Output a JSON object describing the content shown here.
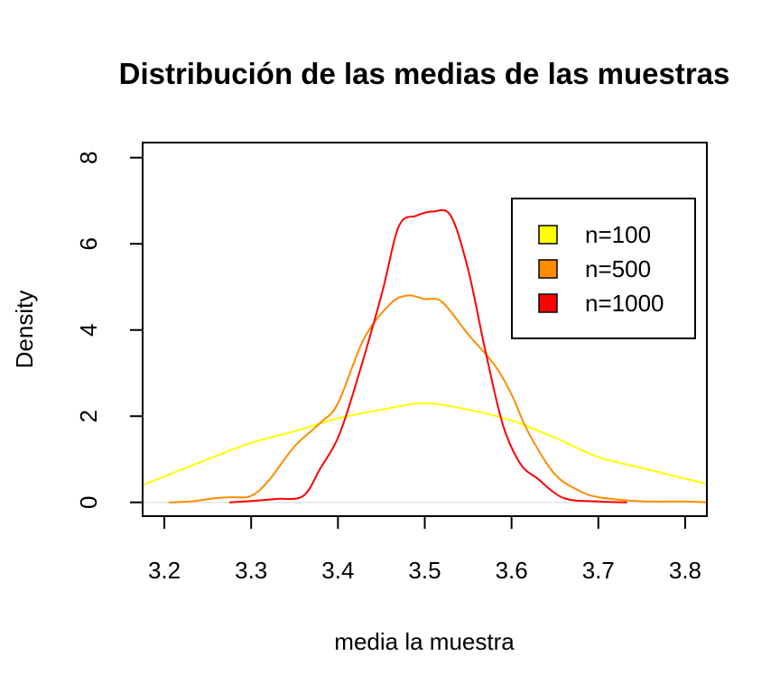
{
  "chart_data": {
    "type": "line",
    "title": "Distribución de las medias de las muestras",
    "xlabel": "media la muestra",
    "ylabel": "Density",
    "xlim": [
      3.175,
      3.825
    ],
    "ylim": [
      -0.32,
      8.35
    ],
    "x_ticks": [
      3.2,
      3.3,
      3.4,
      3.5,
      3.6,
      3.7,
      3.8
    ],
    "x_tick_labels": [
      "3.2",
      "3.3",
      "3.4",
      "3.5",
      "3.6",
      "3.7",
      "3.8"
    ],
    "y_ticks": [
      0,
      2,
      4,
      6,
      8
    ],
    "y_tick_labels": [
      "0",
      "2",
      "4",
      "6",
      "8"
    ],
    "grid": false,
    "baseline": 0,
    "legend": {
      "position": "top-right",
      "entries": [
        {
          "label": "n=100",
          "color": "#FFFF00"
        },
        {
          "label": "n=500",
          "color": "#FF8C00"
        },
        {
          "label": "n=1000",
          "color": "#FF0000"
        }
      ]
    },
    "series": [
      {
        "name": "n=100",
        "color": "#FFFF00",
        "x": [
          3.175,
          3.2,
          3.25,
          3.3,
          3.35,
          3.4,
          3.45,
          3.5,
          3.55,
          3.6,
          3.65,
          3.7,
          3.75,
          3.8,
          3.825
        ],
        "y": [
          0.4,
          0.6,
          1.0,
          1.38,
          1.65,
          1.95,
          2.15,
          2.3,
          2.15,
          1.9,
          1.5,
          1.05,
          0.8,
          0.55,
          0.43
        ]
      },
      {
        "name": "n=500",
        "color": "#FF8C00",
        "x": [
          3.205,
          3.23,
          3.26,
          3.28,
          3.3,
          3.32,
          3.35,
          3.38,
          3.4,
          3.43,
          3.46,
          3.48,
          3.5,
          3.52,
          3.55,
          3.58,
          3.6,
          3.62,
          3.65,
          3.68,
          3.7,
          3.73,
          3.76,
          3.8,
          3.825
        ],
        "y": [
          0.0,
          0.02,
          0.1,
          0.12,
          0.15,
          0.5,
          1.3,
          1.85,
          2.3,
          3.8,
          4.6,
          4.8,
          4.72,
          4.65,
          3.9,
          3.2,
          2.5,
          1.6,
          0.65,
          0.25,
          0.12,
          0.05,
          0.02,
          0.02,
          0.0
        ]
      },
      {
        "name": "n=1000",
        "color": "#FF0000",
        "x": [
          3.275,
          3.3,
          3.33,
          3.36,
          3.38,
          3.4,
          3.42,
          3.45,
          3.47,
          3.49,
          3.51,
          3.53,
          3.55,
          3.57,
          3.59,
          3.61,
          3.63,
          3.66,
          3.7,
          3.733
        ],
        "y": [
          0.0,
          0.03,
          0.08,
          0.15,
          0.8,
          1.5,
          2.7,
          4.8,
          6.4,
          6.65,
          6.75,
          6.65,
          5.4,
          3.5,
          1.8,
          0.9,
          0.55,
          0.1,
          0.02,
          0.0
        ]
      }
    ]
  }
}
